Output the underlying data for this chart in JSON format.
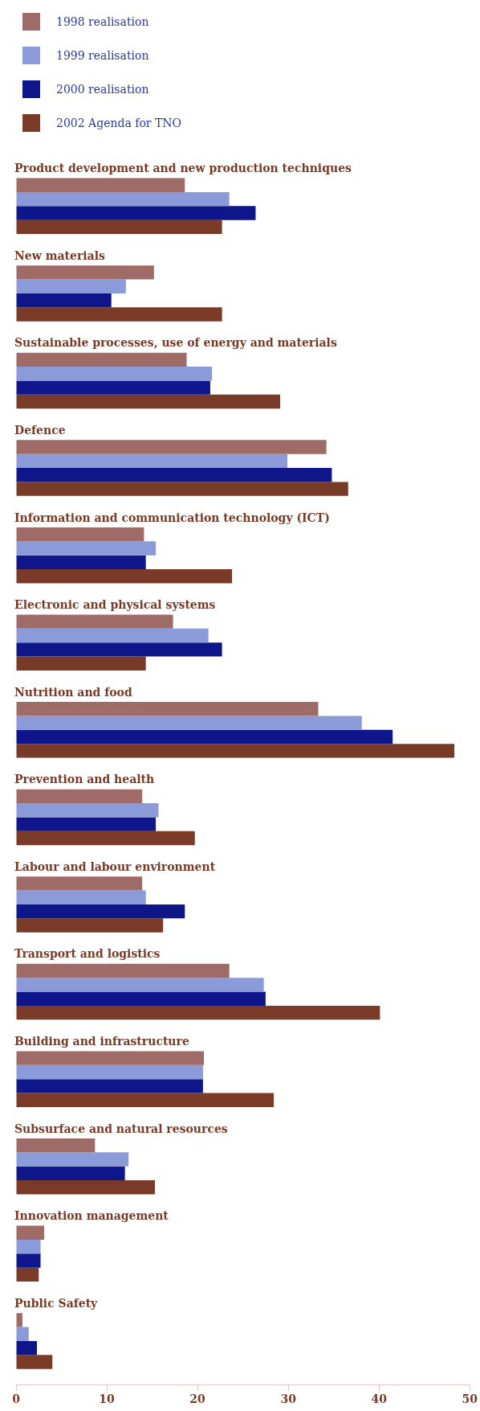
{
  "chart_data": {
    "type": "bar",
    "orientation": "horizontal",
    "legend": "top left",
    "grid": false,
    "categories": [
      "Product development and new production techniques",
      "New materials",
      "Sustainable processes, use of energy and materials",
      "Defence",
      "Information and communication technology (ICT)",
      "Electronic and physical systems",
      "Nutrition and food",
      "Prevention and health",
      "Labour and labour environment",
      "Transport and logistics",
      "Building and infrastructure",
      "Subsurface and natural resources",
      "Innovation management",
      "Public Safety"
    ],
    "series": [
      {
        "name": "1998 realisation",
        "color": "#9e6b66",
        "values": [
          18.6,
          15.2,
          18.8,
          34.2,
          14.1,
          17.3,
          33.3,
          13.9,
          13.9,
          23.5,
          20.7,
          8.7,
          3.1,
          0.7
        ]
      },
      {
        "name": "1999 realisation",
        "color": "#8b9ad8",
        "values": [
          23.5,
          12.1,
          21.6,
          29.9,
          15.4,
          21.2,
          38.1,
          15.7,
          14.3,
          27.3,
          20.6,
          12.4,
          2.7,
          1.4
        ]
      },
      {
        "name": "2000 realisation",
        "color": "#0f168a",
        "values": [
          26.4,
          10.5,
          21.4,
          34.8,
          14.3,
          22.7,
          41.5,
          15.4,
          18.6,
          27.5,
          20.6,
          12.0,
          2.7,
          2.3
        ]
      },
      {
        "name": "2002 Agenda for TNO",
        "color": "#7a3a28",
        "values": [
          22.7,
          22.7,
          29.1,
          36.6,
          23.8,
          14.3,
          48.3,
          19.7,
          16.2,
          40.1,
          28.4,
          15.3,
          2.5,
          4.0
        ]
      }
    ],
    "xlim": [
      0,
      50
    ],
    "xticks": [
      0,
      10,
      20,
      30,
      40,
      50
    ]
  }
}
